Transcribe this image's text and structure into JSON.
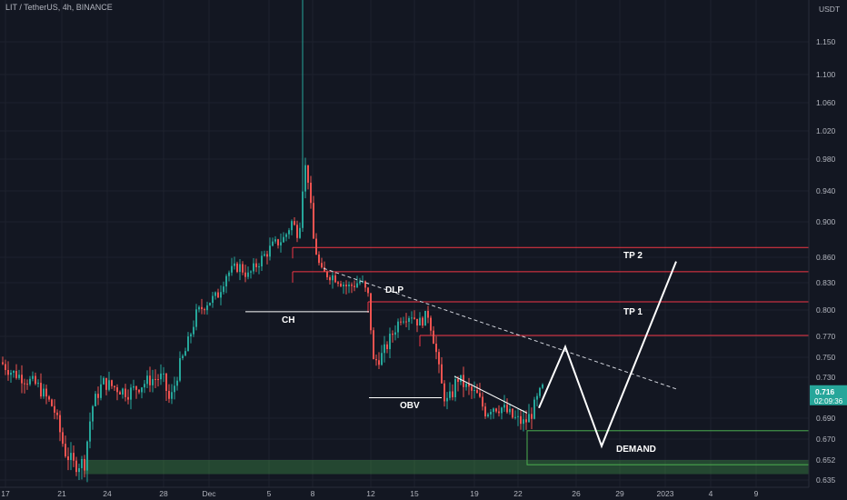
{
  "header": {
    "title": "LIT / TetherUS, 4h, BINANCE"
  },
  "colors": {
    "up": "#26a69a",
    "down": "#ef5350",
    "background": "#131722",
    "grid": "#1e222d",
    "axis_text": "#b2b5be",
    "resistance": "#f23645",
    "demand": "#4caf50",
    "price_tag": "#26a69a"
  },
  "chart_data": {
    "type": "candlestick",
    "title": "LIT / TetherUS, 4h, BINANCE",
    "y_unit": "USDT",
    "y_ticks": [
      "1.150",
      "1.100",
      "1.060",
      "1.020",
      "0.980",
      "0.940",
      "0.900",
      "0.860",
      "0.830",
      "0.800",
      "0.770",
      "0.750",
      "0.730",
      "0.690",
      "0.670",
      "0.652",
      "0.635"
    ],
    "x_ticks": [
      "17",
      "21",
      "24",
      "28",
      "Dec",
      "5",
      "8",
      "12",
      "15",
      "19",
      "22",
      "26",
      "29",
      "2023",
      "4",
      "9"
    ],
    "current_price": {
      "value": "0.716",
      "countdown": "02:09:36"
    },
    "approx_range": {
      "low": 0.638,
      "high": 0.985
    },
    "levels": [
      {
        "name": "TP 2",
        "price": 0.871,
        "type": "resistance"
      },
      {
        "name": "",
        "price": 0.843,
        "type": "resistance"
      },
      {
        "name": "TP 1",
        "price": 0.809,
        "type": "resistance"
      },
      {
        "name": "",
        "price": 0.771,
        "type": "resistance"
      },
      {
        "name": "DEMAND",
        "price_top": 0.678,
        "price_bottom": 0.648,
        "type": "demand"
      }
    ],
    "annotations": [
      {
        "label": "CH",
        "price": 0.798
      },
      {
        "label": "OBV",
        "price": 0.71
      },
      {
        "label": "DLP",
        "type": "trendline-dashed"
      },
      {
        "label": "TP 2"
      },
      {
        "label": "TP 1"
      },
      {
        "label": "DEMAND"
      }
    ]
  }
}
